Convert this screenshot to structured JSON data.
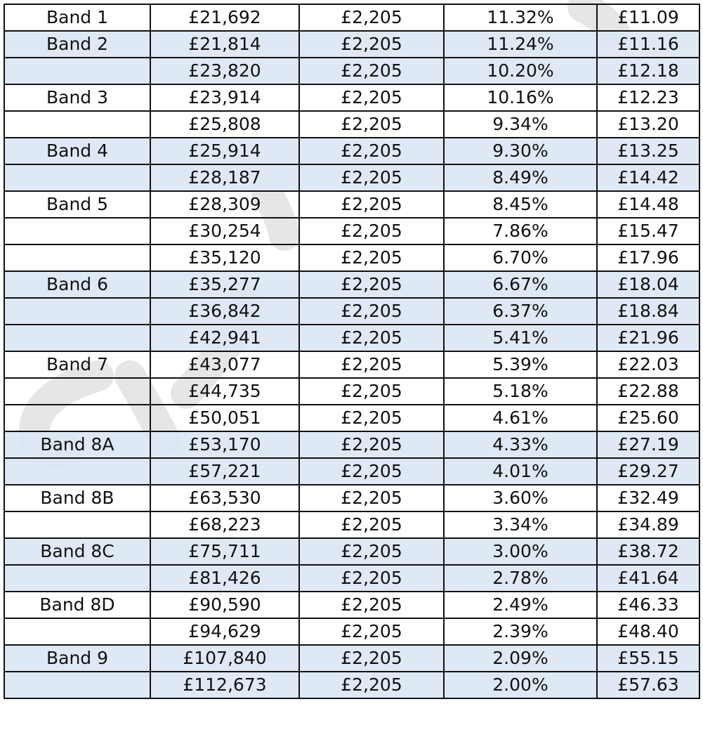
{
  "colors": {
    "shaded_row": "#DCE7F4",
    "border": "#111111",
    "watermark": "#E6E6E6"
  },
  "rows": [
    {
      "band": "Band 1",
      "salary": "£21,692",
      "amount": "£2,205",
      "percent": "11.32%",
      "hourly": "£11.09",
      "shaded": false
    },
    {
      "band": "Band 2",
      "salary": "£21,814",
      "amount": "£2,205",
      "percent": "11.24%",
      "hourly": "£11.16",
      "shaded": true
    },
    {
      "band": "",
      "salary": "£23,820",
      "amount": "£2,205",
      "percent": "10.20%",
      "hourly": "£12.18",
      "shaded": true
    },
    {
      "band": "Band 3",
      "salary": "£23,914",
      "amount": "£2,205",
      "percent": "10.16%",
      "hourly": "£12.23",
      "shaded": false
    },
    {
      "band": "",
      "salary": "£25,808",
      "amount": "£2,205",
      "percent": "9.34%",
      "hourly": "£13.20",
      "shaded": false
    },
    {
      "band": "Band 4",
      "salary": "£25,914",
      "amount": "£2,205",
      "percent": "9.30%",
      "hourly": "£13.25",
      "shaded": true
    },
    {
      "band": "",
      "salary": "£28,187",
      "amount": "£2,205",
      "percent": "8.49%",
      "hourly": "£14.42",
      "shaded": true
    },
    {
      "band": "Band 5",
      "salary": "£28,309",
      "amount": "£2,205",
      "percent": "8.45%",
      "hourly": "£14.48",
      "shaded": false
    },
    {
      "band": "",
      "salary": "£30,254",
      "amount": "£2,205",
      "percent": "7.86%",
      "hourly": "£15.47",
      "shaded": false
    },
    {
      "band": "",
      "salary": "£35,120",
      "amount": "£2,205",
      "percent": "6.70%",
      "hourly": "£17.96",
      "shaded": false
    },
    {
      "band": "Band 6",
      "salary": "£35,277",
      "amount": "£2,205",
      "percent": "6.67%",
      "hourly": "£18.04",
      "shaded": true
    },
    {
      "band": "",
      "salary": "£36,842",
      "amount": "£2,205",
      "percent": "6.37%",
      "hourly": "£18.84",
      "shaded": true
    },
    {
      "band": "",
      "salary": "£42,941",
      "amount": "£2,205",
      "percent": "5.41%",
      "hourly": "£21.96",
      "shaded": true
    },
    {
      "band": "Band 7",
      "salary": "£43,077",
      "amount": "£2,205",
      "percent": "5.39%",
      "hourly": "£22.03",
      "shaded": false
    },
    {
      "band": "",
      "salary": "£44,735",
      "amount": "£2,205",
      "percent": "5.18%",
      "hourly": "£22.88",
      "shaded": false
    },
    {
      "band": "",
      "salary": "£50,051",
      "amount": "£2,205",
      "percent": "4.61%",
      "hourly": "£25.60",
      "shaded": false
    },
    {
      "band": "Band 8A",
      "salary": "£53,170",
      "amount": "£2,205",
      "percent": "4.33%",
      "hourly": "£27.19",
      "shaded": true
    },
    {
      "band": "",
      "salary": "£57,221",
      "amount": "£2,205",
      "percent": "4.01%",
      "hourly": "£29.27",
      "shaded": true
    },
    {
      "band": "Band 8B",
      "salary": "£63,530",
      "amount": "£2,205",
      "percent": "3.60%",
      "hourly": "£32.49",
      "shaded": false
    },
    {
      "band": "",
      "salary": "£68,223",
      "amount": "£2,205",
      "percent": "3.34%",
      "hourly": "£34.89",
      "shaded": false
    },
    {
      "band": "Band 8C",
      "salary": "£75,711",
      "amount": "£2,205",
      "percent": "3.00%",
      "hourly": "£38.72",
      "shaded": true
    },
    {
      "band": "",
      "salary": "£81,426",
      "amount": "£2,205",
      "percent": "2.78%",
      "hourly": "£41.64",
      "shaded": true
    },
    {
      "band": "Band 8D",
      "salary": "£90,590",
      "amount": "£2,205",
      "percent": "2.49%",
      "hourly": "£46.33",
      "shaded": false
    },
    {
      "band": "",
      "salary": "£94,629",
      "amount": "£2,205",
      "percent": "2.39%",
      "hourly": "£48.40",
      "shaded": false
    },
    {
      "band": "Band 9",
      "salary": "£107,840",
      "amount": "£2,205",
      "percent": "2.09%",
      "hourly": "£55.15",
      "shaded": true
    },
    {
      "band": "",
      "salary": "£112,673",
      "amount": "£2,205",
      "percent": "2.00%",
      "hourly": "£57.63",
      "shaded": true
    }
  ]
}
